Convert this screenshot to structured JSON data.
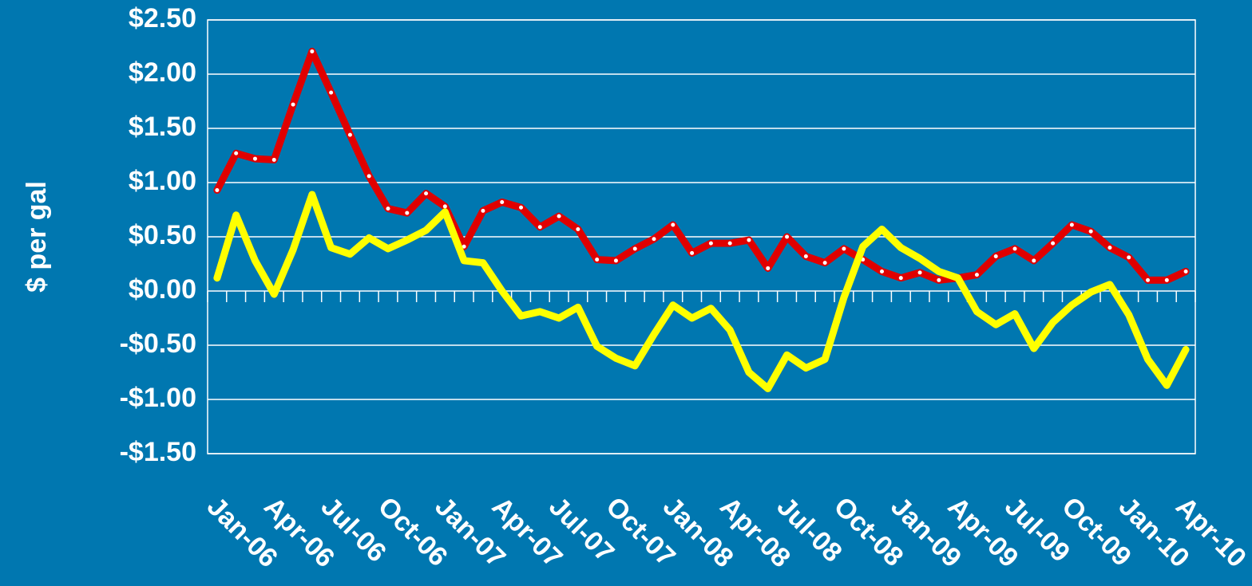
{
  "chart_data": {
    "type": "line",
    "y_label": "$ per gal",
    "categories": [
      "Jan-06",
      null,
      null,
      "Apr-06",
      null,
      null,
      "Jul-06",
      null,
      null,
      "Oct-06",
      null,
      null,
      "Jan-07",
      null,
      null,
      "Apr-07",
      null,
      null,
      "Jul-07",
      null,
      null,
      "Oct-07",
      null,
      null,
      "Jan-08",
      null,
      null,
      "Apr-08",
      null,
      null,
      "Jul-08",
      null,
      null,
      "Oct-08",
      null,
      null,
      "Jan-09",
      null,
      null,
      "Apr-09",
      null,
      null,
      "Jul-09",
      null,
      null,
      "Oct-09",
      null,
      null,
      "Jan-10",
      null,
      null,
      "Apr-10"
    ],
    "series": [
      {
        "color": "#e00000",
        "markers": true,
        "values": [
          0.93,
          1.27,
          1.22,
          1.21,
          1.72,
          2.21,
          1.83,
          1.44,
          1.06,
          0.76,
          0.72,
          0.9,
          0.78,
          0.41,
          0.74,
          0.82,
          0.77,
          0.59,
          0.69,
          0.57,
          0.29,
          0.28,
          0.39,
          0.48,
          0.61,
          0.35,
          0.44,
          0.44,
          0.47,
          0.21,
          0.5,
          0.32,
          0.26,
          0.39,
          0.29,
          0.18,
          0.12,
          0.17,
          0.1,
          0.12,
          0.15,
          0.32,
          0.39,
          0.28,
          0.44,
          0.61,
          0.55,
          0.4,
          0.31,
          0.1,
          0.1,
          0.18
        ]
      },
      {
        "color": "#ffff00",
        "markers": false,
        "values": [
          0.12,
          0.7,
          0.28,
          -0.03,
          0.38,
          0.89,
          0.4,
          0.34,
          0.49,
          0.39,
          0.47,
          0.56,
          0.73,
          0.28,
          0.26,
          0,
          -0.23,
          -0.19,
          -0.25,
          -0.15,
          -0.51,
          -0.62,
          -0.69,
          -0.4,
          -0.13,
          -0.25,
          -0.16,
          -0.36,
          -0.75,
          -0.9,
          -0.59,
          -0.71,
          -0.63,
          -0.06,
          0.41,
          0.57,
          0.4,
          0.3,
          0.18,
          0.12,
          -0.19,
          -0.31,
          -0.21,
          -0.53,
          -0.29,
          -0.13,
          -0.01,
          0.06,
          -0.22,
          -0.63,
          -0.87,
          -0.54
        ]
      }
    ],
    "ylim": [
      -1.5,
      2.5
    ],
    "yticks": [
      {
        "value": -1.5,
        "label": "-$1.50"
      },
      {
        "value": -1,
        "label": "-$1.00"
      },
      {
        "value": -0.5,
        "label": "-$0.50"
      },
      {
        "value": 0,
        "label": "$0.00"
      },
      {
        "value": 0.5,
        "label": "$0.50"
      },
      {
        "value": 1,
        "label": "$1.00"
      },
      {
        "value": 1.5,
        "label": "$1.50"
      },
      {
        "value": 2,
        "label": "$2.00"
      },
      {
        "value": 2.5,
        "label": "$2.50"
      }
    ],
    "grid": true
  }
}
